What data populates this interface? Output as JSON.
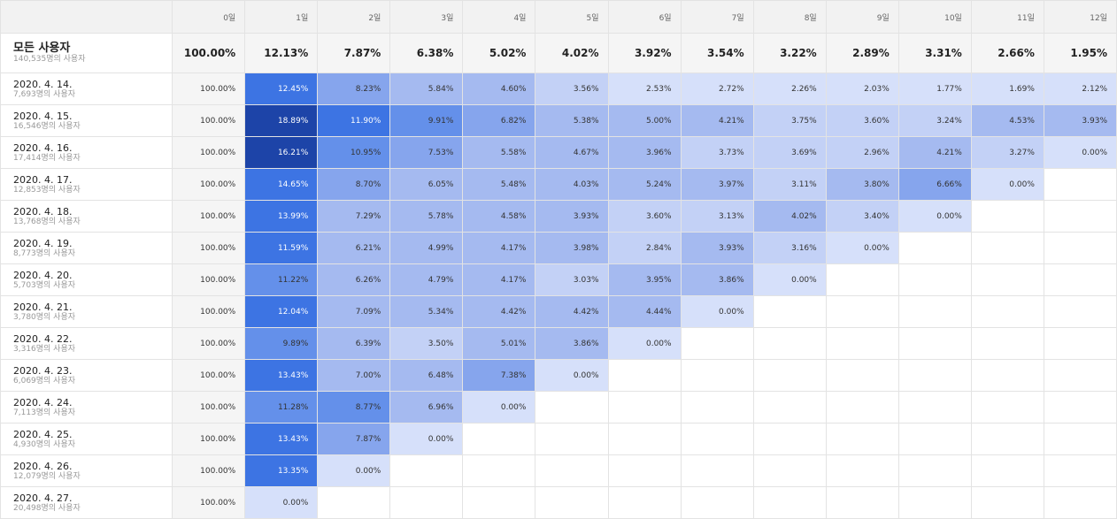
{
  "header": {
    "days": [
      "0일",
      "1일",
      "2일",
      "3일",
      "4일",
      "5일",
      "6일",
      "7일",
      "8일",
      "9일",
      "10일",
      "11일",
      "12일"
    ]
  },
  "total": {
    "title": "모든 사용자",
    "subtitle": "140,535명의 사용자",
    "values": [
      "100.00%",
      "12.13%",
      "7.87%",
      "6.38%",
      "5.02%",
      "4.02%",
      "3.92%",
      "3.54%",
      "3.22%",
      "2.89%",
      "3.31%",
      "2.66%",
      "1.95%"
    ]
  },
  "colors": {
    "palette": [
      "#d6e0fa",
      "#c3d1f6",
      "#a5baf0",
      "#86a5ed",
      "#6490ea",
      "#3d74e3",
      "#1d44a8"
    ],
    "day0": "#f5f5f5",
    "empty": "#ffffff"
  },
  "rows": [
    {
      "date": "2020. 4. 14.",
      "users": "7,693명의 사용자",
      "values": [
        "100.00%",
        "12.45%",
        "8.23%",
        "5.84%",
        "4.60%",
        "3.56%",
        "2.53%",
        "2.72%",
        "2.26%",
        "2.03%",
        "1.77%",
        "1.69%",
        "2.12%"
      ],
      "levels": [
        -1,
        5,
        3,
        2,
        2,
        1,
        0,
        0,
        0,
        0,
        0,
        0,
        0
      ]
    },
    {
      "date": "2020. 4. 15.",
      "users": "16,546명의 사용자",
      "values": [
        "100.00%",
        "18.89%",
        "11.90%",
        "9.91%",
        "6.82%",
        "5.38%",
        "5.00%",
        "4.21%",
        "3.75%",
        "3.60%",
        "3.24%",
        "4.53%",
        "3.93%"
      ],
      "levels": [
        -1,
        6,
        5,
        4,
        3,
        2,
        2,
        2,
        1,
        1,
        1,
        2,
        2
      ]
    },
    {
      "date": "2020. 4. 16.",
      "users": "17,414명의 사용자",
      "values": [
        "100.00%",
        "16.21%",
        "10.95%",
        "7.53%",
        "5.58%",
        "4.67%",
        "3.96%",
        "3.73%",
        "3.69%",
        "2.96%",
        "4.21%",
        "3.27%",
        "0.00%"
      ],
      "levels": [
        -1,
        6,
        4,
        3,
        2,
        2,
        2,
        1,
        1,
        1,
        2,
        1,
        0
      ]
    },
    {
      "date": "2020. 4. 17.",
      "users": "12,853명의 사용자",
      "values": [
        "100.00%",
        "14.65%",
        "8.70%",
        "6.05%",
        "5.48%",
        "4.03%",
        "5.24%",
        "3.97%",
        "3.11%",
        "3.80%",
        "6.66%",
        "0.00%",
        ""
      ],
      "levels": [
        -1,
        5,
        3,
        2,
        2,
        2,
        2,
        2,
        1,
        2,
        3,
        0,
        -2
      ]
    },
    {
      "date": "2020. 4. 18.",
      "users": "13,768명의 사용자",
      "values": [
        "100.00%",
        "13.99%",
        "7.29%",
        "5.78%",
        "4.58%",
        "3.93%",
        "3.60%",
        "3.13%",
        "4.02%",
        "3.40%",
        "0.00%",
        "",
        ""
      ],
      "levels": [
        -1,
        5,
        2,
        2,
        2,
        2,
        1,
        1,
        2,
        1,
        0,
        -2,
        -2
      ]
    },
    {
      "date": "2020. 4. 19.",
      "users": "8,773명의 사용자",
      "values": [
        "100.00%",
        "11.59%",
        "6.21%",
        "4.99%",
        "4.17%",
        "3.98%",
        "2.84%",
        "3.93%",
        "3.16%",
        "0.00%",
        "",
        "",
        ""
      ],
      "levels": [
        -1,
        5,
        2,
        2,
        2,
        2,
        1,
        2,
        1,
        0,
        -2,
        -2,
        -2
      ]
    },
    {
      "date": "2020. 4. 20.",
      "users": "5,703명의 사용자",
      "values": [
        "100.00%",
        "11.22%",
        "6.26%",
        "4.79%",
        "4.17%",
        "3.03%",
        "3.95%",
        "3.86%",
        "0.00%",
        "",
        "",
        "",
        ""
      ],
      "levels": [
        -1,
        4,
        2,
        2,
        2,
        1,
        2,
        2,
        0,
        -2,
        -2,
        -2,
        -2
      ]
    },
    {
      "date": "2020. 4. 21.",
      "users": "3,780명의 사용자",
      "values": [
        "100.00%",
        "12.04%",
        "7.09%",
        "5.34%",
        "4.42%",
        "4.42%",
        "4.44%",
        "0.00%",
        "",
        "",
        "",
        "",
        ""
      ],
      "levels": [
        -1,
        5,
        2,
        2,
        2,
        2,
        2,
        0,
        -2,
        -2,
        -2,
        -2,
        -2
      ]
    },
    {
      "date": "2020. 4. 22.",
      "users": "3,316명의 사용자",
      "values": [
        "100.00%",
        "9.89%",
        "6.39%",
        "3.50%",
        "5.01%",
        "3.86%",
        "0.00%",
        "",
        "",
        "",
        "",
        "",
        ""
      ],
      "levels": [
        -1,
        4,
        2,
        1,
        2,
        2,
        0,
        -2,
        -2,
        -2,
        -2,
        -2,
        -2
      ]
    },
    {
      "date": "2020. 4. 23.",
      "users": "6,069명의 사용자",
      "values": [
        "100.00%",
        "13.43%",
        "7.00%",
        "6.48%",
        "7.38%",
        "0.00%",
        "",
        "",
        "",
        "",
        "",
        "",
        ""
      ],
      "levels": [
        -1,
        5,
        2,
        2,
        3,
        0,
        -2,
        -2,
        -2,
        -2,
        -2,
        -2,
        -2
      ]
    },
    {
      "date": "2020. 4. 24.",
      "users": "7,113명의 사용자",
      "values": [
        "100.00%",
        "11.28%",
        "8.77%",
        "6.96%",
        "0.00%",
        "",
        "",
        "",
        "",
        "",
        "",
        "",
        ""
      ],
      "levels": [
        -1,
        4,
        4,
        2,
        0,
        -2,
        -2,
        -2,
        -2,
        -2,
        -2,
        -2,
        -2
      ]
    },
    {
      "date": "2020. 4. 25.",
      "users": "4,930명의 사용자",
      "values": [
        "100.00%",
        "13.43%",
        "7.87%",
        "0.00%",
        "",
        "",
        "",
        "",
        "",
        "",
        "",
        "",
        ""
      ],
      "levels": [
        -1,
        5,
        3,
        0,
        -2,
        -2,
        -2,
        -2,
        -2,
        -2,
        -2,
        -2,
        -2
      ]
    },
    {
      "date": "2020. 4. 26.",
      "users": "12,079명의 사용자",
      "values": [
        "100.00%",
        "13.35%",
        "0.00%",
        "",
        "",
        "",
        "",
        "",
        "",
        "",
        "",
        "",
        ""
      ],
      "levels": [
        -1,
        5,
        0,
        -2,
        -2,
        -2,
        -2,
        -2,
        -2,
        -2,
        -2,
        -2,
        -2
      ]
    },
    {
      "date": "2020. 4. 27.",
      "users": "20,498명의 사용자",
      "values": [
        "100.00%",
        "0.00%",
        "",
        "",
        "",
        "",
        "",
        "",
        "",
        "",
        "",
        "",
        ""
      ],
      "levels": [
        -1,
        0,
        -2,
        -2,
        -2,
        -2,
        -2,
        -2,
        -2,
        -2,
        -2,
        -2,
        -2
      ]
    }
  ]
}
